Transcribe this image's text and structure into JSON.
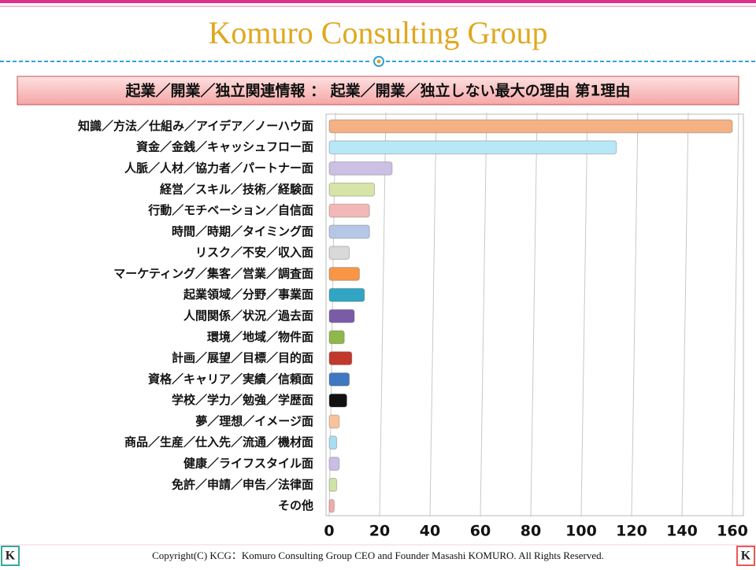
{
  "header": {
    "title": "Komuro Consulting Group",
    "subtitle": "起業／開業／独立関連情報 ： 起業／開業／独立しない最大の理由 第1理由"
  },
  "chart_data": {
    "type": "bar",
    "orientation": "horizontal",
    "categories": [
      "知識／方法／仕組み／アイデア／ノーハウ面",
      "資金／金銭／キャッシュフロー面",
      "人脈／人材／協力者／パートナー面",
      "経営／スキル／技術／経験面",
      "行動／モチベーション／自信面",
      "時間／時期／タイミング面",
      "リスク／不安／収入面",
      "マーケティング／集客／営業／調査面",
      "起業領域／分野／事業面",
      "人間関係／状況／過去面",
      "環境／地域／物件面",
      "計画／展望／目標／目的面",
      "資格／キャリア／実績／信頼面",
      "学校／学力／勉強／学歴面",
      "夢／理想／イメージ面",
      "商品／生産／仕入先／流通／機材面",
      "健康／ライフスタイル面",
      "免許／申請／申告／法律面",
      "その他"
    ],
    "values": [
      160,
      114,
      25,
      18,
      16,
      16,
      8,
      12,
      14,
      10,
      6,
      9,
      8,
      7,
      4,
      3,
      4,
      3,
      2
    ],
    "colors": [
      "#f4b183",
      "#b7e8f8",
      "#ccc0e4",
      "#d7e4a8",
      "#f4b7b7",
      "#b4c7e7",
      "#d9d9d9",
      "#f79646",
      "#31a5c4",
      "#7a5ca6",
      "#8fb84a",
      "#c0392b",
      "#3f78c0",
      "#111111",
      "#f8c39a",
      "#a9def2",
      "#cbbde6",
      "#cfe3a4",
      "#f2aaaa"
    ],
    "xlim": [
      0,
      160
    ],
    "xticks": [
      0,
      20,
      40,
      60,
      80,
      100,
      120,
      140,
      160
    ],
    "grid": true
  },
  "footer": {
    "copyright": "Copyright(C) KCG：Komuro Consulting Group CEO and Founder Masashi KOMURO. All Rights Reserved.",
    "logo": "K"
  }
}
